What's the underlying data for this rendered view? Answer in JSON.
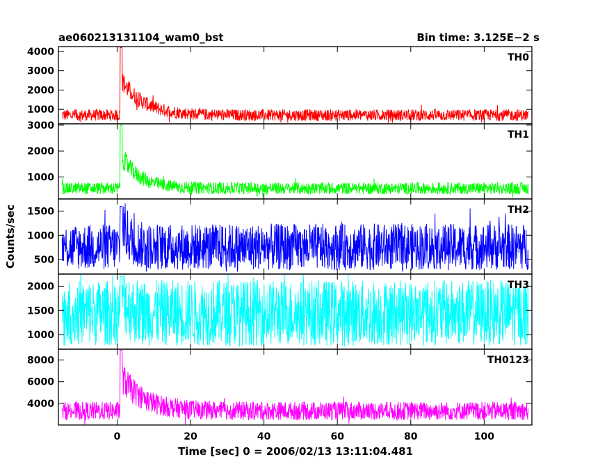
{
  "title_left": "ae060213131104_wam0_bst",
  "title_right": "Bin time: 3.125E−2 s",
  "ylabel": "Counts/sec",
  "xlabel": "Time [sec] 0 = 2006/02/13 13:11:04.481",
  "chart_data": [
    {
      "type": "line",
      "name": "TH0",
      "color": "#ff0000",
      "xlim": [
        -16,
        113
      ],
      "ylim": [
        250,
        4250
      ],
      "yticks": [
        1000,
        2000,
        3000,
        4000
      ],
      "x_ticks": [
        0,
        20,
        40,
        60,
        80,
        100
      ],
      "x_range": [
        -15,
        112
      ],
      "baseline": 700,
      "noise_halfwidth": 300,
      "burst": {
        "t0": 0.8,
        "peak": 4200,
        "decay": 6,
        "noise_scale": 0.9
      }
    },
    {
      "type": "line",
      "name": "TH1",
      "color": "#00ff00",
      "xlim": [
        -16,
        113
      ],
      "ylim": [
        150,
        3050
      ],
      "yticks": [
        1000,
        2000,
        3000
      ],
      "x_ticks": [
        0,
        20,
        40,
        60,
        80,
        100
      ],
      "x_range": [
        -15,
        112
      ],
      "baseline": 560,
      "noise_halfwidth": 230,
      "burst": {
        "t0": 0.8,
        "peak": 3000,
        "decay": 5,
        "noise_scale": 0.9
      }
    },
    {
      "type": "line",
      "name": "TH2",
      "color": "#0000ff",
      "xlim": [
        -16,
        113
      ],
      "ylim": [
        200,
        1750
      ],
      "yticks": [
        500,
        1000,
        1500
      ],
      "x_ticks": [
        0,
        20,
        40,
        60,
        80,
        100
      ],
      "x_range": [
        -15,
        112
      ],
      "baseline": 760,
      "noise_halfwidth": 480,
      "burst": {
        "t0": 0.8,
        "peak": 1600,
        "decay": 2,
        "noise_scale": 0.35
      }
    },
    {
      "type": "line",
      "name": "TH3",
      "color": "#00ffff",
      "xlim": [
        -16,
        113
      ],
      "ylim": [
        700,
        2250
      ],
      "yticks": [
        1000,
        1500,
        2000
      ],
      "x_ticks": [
        0,
        20,
        40,
        60,
        80,
        100
      ],
      "x_range": [
        -15,
        112
      ],
      "baseline": 1450,
      "noise_halfwidth": 680,
      "burst": {
        "t0": 0.8,
        "peak": 2200,
        "decay": 1.5,
        "noise_scale": 0.2
      }
    },
    {
      "type": "line",
      "name": "TH0123",
      "color": "#ff00ff",
      "xlim": [
        -16,
        113
      ],
      "ylim": [
        2000,
        9000
      ],
      "yticks": [
        4000,
        6000,
        8000
      ],
      "x_ticks": [
        0,
        20,
        40,
        60,
        80,
        100
      ],
      "x_range": [
        -15,
        112
      ],
      "baseline": 3300,
      "noise_halfwidth": 850,
      "burst": {
        "t0": 0.8,
        "peak": 8900,
        "decay": 6,
        "noise_scale": 0.8
      }
    }
  ]
}
